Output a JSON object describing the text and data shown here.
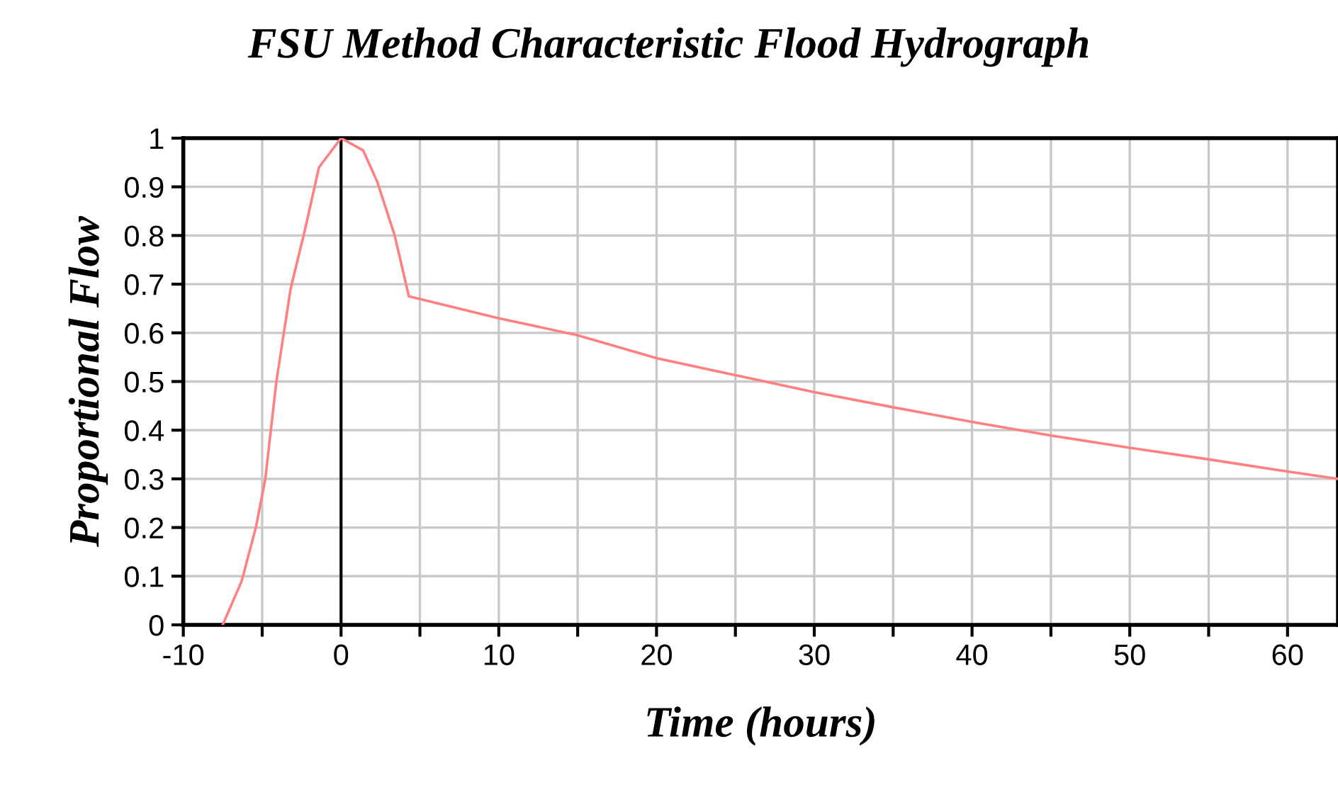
{
  "chart_data": {
    "type": "line",
    "title": "FSU Method Characteristic Flood Hydrograph",
    "xlabel": "Time (hours)",
    "ylabel": "Proportional Flow",
    "x": [
      -7.5,
      -6.3,
      -5.4,
      -4.8,
      -4.1,
      -3.2,
      -2.3,
      -1.4,
      0,
      1.4,
      2.3,
      3.4,
      4.3,
      10,
      15,
      20,
      25,
      30,
      35,
      40,
      45,
      50,
      55,
      60,
      63.2
    ],
    "series": [
      {
        "color": "#ff8080",
        "values": [
          0,
          0.09,
          0.2,
          0.3,
          0.5,
          0.69,
          0.81,
          0.94,
          1,
          0.975,
          0.91,
          0.8,
          0.675,
          0.63,
          0.595,
          0.548,
          0.513,
          0.478,
          0.447,
          0.417,
          0.389,
          0.364,
          0.34,
          0.315,
          0.3
        ]
      }
    ],
    "xlim": [
      -10,
      63.2
    ],
    "ylim": [
      0,
      1
    ],
    "xticks": [
      -10,
      {
        "value": -5,
        "label": null
      },
      0,
      {
        "value": 5,
        "label": null
      },
      10,
      {
        "value": 15,
        "label": null
      },
      20,
      {
        "value": 25,
        "label": null
      },
      30,
      {
        "value": 35,
        "label": null
      },
      40,
      {
        "value": 45,
        "label": null
      },
      50,
      {
        "value": 55,
        "label": null
      },
      60
    ],
    "yticks": [
      0,
      0.1,
      0.2,
      0.3,
      0.4,
      0.5,
      0.6,
      0.7,
      0.8,
      0.9,
      1
    ],
    "ref_lines": [
      {
        "axis": "x",
        "value": 0,
        "color": "#000000"
      }
    ],
    "grid": true,
    "legend": false,
    "marker": "none",
    "line_style": "solid"
  }
}
